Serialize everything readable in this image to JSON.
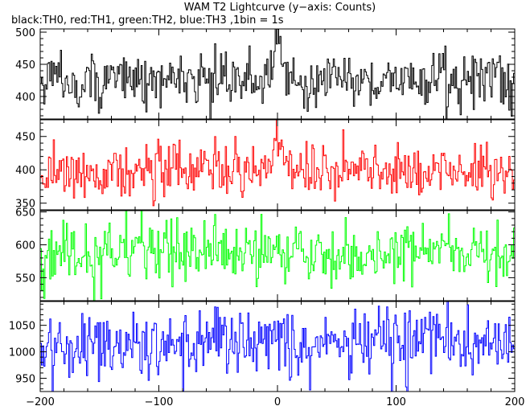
{
  "chart_data": {
    "type": "line",
    "title": "WAM T2 Lightcurve (y−axis: Counts)",
    "subtitle": "black:TH0, red:TH1, green:TH2, blue:TH3 ,1bin = 1s",
    "xlim": [
      -200,
      200
    ],
    "xticks": [
      -200,
      -100,
      0,
      100,
      200
    ],
    "xtick_labels": [
      "−200",
      "−100",
      "0",
      "100",
      "200"
    ],
    "bin_seconds": 1,
    "grid": false,
    "panels": [
      {
        "name": "TH0",
        "color": "#000000",
        "ylim": [
          365,
          505
        ],
        "yticks": [
          400,
          450,
          500
        ],
        "ytick_labels": [
          "400",
          "450",
          "500"
        ],
        "baseline": 425,
        "noise": 22,
        "spike": {
          "center": 0,
          "width": 4,
          "height": 70
        }
      },
      {
        "name": "TH1",
        "color": "#ff0000",
        "ylim": [
          340,
          475
        ],
        "yticks": [
          350,
          400,
          450
        ],
        "ytick_labels": [
          "350",
          "400",
          "450"
        ],
        "baseline": 398,
        "noise": 20,
        "spike": {
          "center": 0,
          "width": 4,
          "height": 55
        }
      },
      {
        "name": "TH2",
        "color": "#00ff00",
        "ylim": [
          515,
          652
        ],
        "yticks": [
          550,
          600,
          650
        ],
        "ytick_labels": [
          "550",
          "600",
          "650"
        ],
        "baseline": 588,
        "noise": 24,
        "spike": null
      },
      {
        "name": "TH3",
        "color": "#0000ff",
        "ylim": [
          925,
          1095
        ],
        "yticks": [
          950,
          1000,
          1050
        ],
        "ytick_labels": [
          "950",
          "1000",
          "1050"
        ],
        "baseline": 1015,
        "noise": 33,
        "spike": null
      }
    ]
  }
}
